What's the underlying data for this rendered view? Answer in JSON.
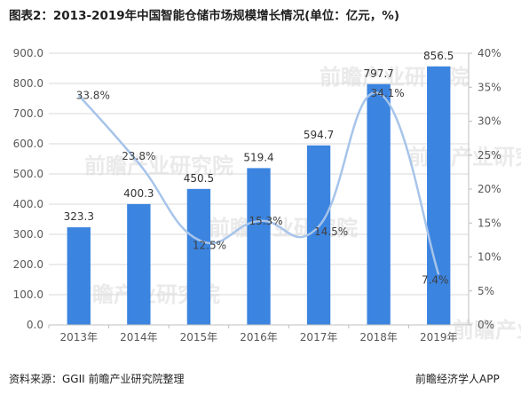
{
  "title": "图表2：2013-2019年中国智能仓储市场规模增长情况(单位：亿元，%)",
  "source": "资料来源：GGII 前瞻产业研究院整理",
  "brand": "前瞻经济学人APP",
  "watermark": "前瞻产业研究院",
  "chart_data": {
    "type": "bar",
    "categories": [
      "2013年",
      "2014年",
      "2015年",
      "2016年",
      "2017年",
      "2018年",
      "2019年"
    ],
    "series": [
      {
        "type": "bar",
        "axis": "left",
        "values": [
          323.3,
          400.3,
          450.5,
          519.4,
          594.7,
          797.7,
          856.5
        ],
        "labels": [
          "323.3",
          "400.3",
          "450.5",
          "519.4",
          "594.7",
          "797.7",
          "856.5"
        ],
        "color": "#3b84e0"
      },
      {
        "type": "line",
        "axis": "right",
        "smooth": true,
        "values": [
          33.8,
          23.8,
          12.5,
          15.3,
          14.5,
          34.1,
          7.4
        ],
        "labels": [
          "33.8%",
          "23.8%",
          "12.5%",
          "15.3%",
          "14.5%",
          "34.1%",
          "7.4%"
        ],
        "color": "#a7c4ea"
      }
    ],
    "y_left": {
      "min": 0,
      "max": 900,
      "step": 100,
      "ticks": [
        "0.0",
        "100.0",
        "200.0",
        "300.0",
        "400.0",
        "500.0",
        "600.0",
        "700.0",
        "800.0",
        "900.0"
      ]
    },
    "y_right": {
      "min": 0,
      "max": 40,
      "step": 5,
      "ticks": [
        "0%",
        "5%",
        "10%",
        "15%",
        "20%",
        "25%",
        "30%",
        "35%",
        "40%"
      ]
    },
    "grid": true
  }
}
